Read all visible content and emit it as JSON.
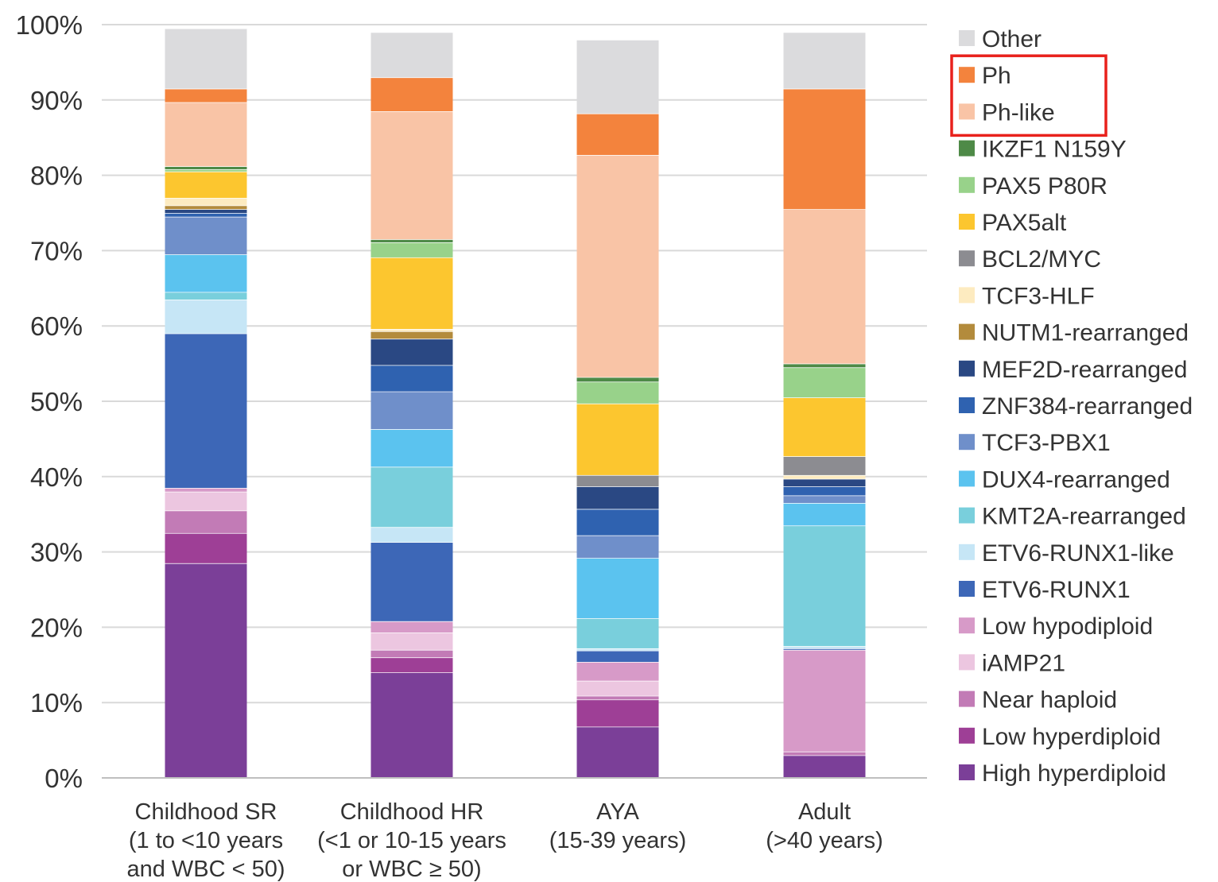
{
  "chart_data": {
    "type": "bar",
    "stacked": true,
    "ylim": [
      0,
      100
    ],
    "yticks": [
      "0%",
      "10%",
      "20%",
      "30%",
      "40%",
      "50%",
      "60%",
      "70%",
      "80%",
      "90%",
      "100%"
    ],
    "grid": true,
    "legend_position": "right",
    "categories": [
      [
        "Childhood SR",
        "(1 to <10 years",
        "and WBC < 50)"
      ],
      [
        "Childhood HR",
        "(<1 or 10-15 years",
        "or WBC ≥ 50)"
      ],
      [
        "AYA",
        "(15-39 years)"
      ],
      [
        "Adult",
        "(>40 years)"
      ]
    ],
    "series": [
      {
        "name": "High hyperdiploid",
        "color": "#7b3f98",
        "values": [
          28.5,
          14,
          6.8,
          3
        ]
      },
      {
        "name": "Low hyperdiploid",
        "color": "#9e3f96",
        "values": [
          4,
          2,
          3.6,
          0
        ]
      },
      {
        "name": "Near haploid",
        "color": "#c27bb6",
        "values": [
          3,
          1,
          0.5,
          0.5
        ]
      },
      {
        "name": "iAMP21",
        "color": "#ecc6e0",
        "values": [
          2.5,
          2.3,
          2,
          0
        ]
      },
      {
        "name": "Low hypodiploid",
        "color": "#d79ac8",
        "values": [
          0.5,
          1.5,
          2.5,
          13.5
        ]
      },
      {
        "name": "ETV6-RUNX1",
        "color": "#3d67b7",
        "values": [
          20.5,
          10.5,
          1.5,
          0.2
        ]
      },
      {
        "name": "ETV6-RUNX1-like",
        "color": "#c6e6f6",
        "values": [
          4.5,
          2,
          0.3,
          0.3
        ]
      },
      {
        "name": "KMT2A-rearranged",
        "color": "#79cfdc",
        "values": [
          1,
          8,
          4,
          16
        ]
      },
      {
        "name": "DUX4-rearranged",
        "color": "#5bc3ef",
        "values": [
          5,
          5,
          8,
          3
        ]
      },
      {
        "name": "TCF3-PBX1",
        "color": "#6f8fca",
        "values": [
          5,
          5,
          3,
          1
        ]
      },
      {
        "name": "ZNF384-rearranged",
        "color": "#2f62b0",
        "values": [
          0.5,
          3.5,
          3.5,
          1.2
        ]
      },
      {
        "name": "MEF2D-rearranged",
        "color": "#2a4883",
        "values": [
          0.5,
          3.5,
          3,
          1
        ]
      },
      {
        "name": "NUTM1-rearranged",
        "color": "#b38b3c",
        "values": [
          0.5,
          1,
          0,
          0
        ]
      },
      {
        "name": "TCF3-HLF",
        "color": "#fdebc0",
        "values": [
          1,
          0.3,
          0,
          0.5
        ]
      },
      {
        "name": "BCL2/MYC",
        "color": "#8c8c91",
        "values": [
          0,
          0,
          1.5,
          2.5
        ]
      },
      {
        "name": "PAX5alt",
        "color": "#fcc62f",
        "values": [
          3.5,
          9.5,
          9.5,
          7.8
        ]
      },
      {
        "name": "PAX5 P80R",
        "color": "#98d28a",
        "values": [
          0.3,
          2,
          2.9,
          4
        ]
      },
      {
        "name": "IKZF1 N159Y",
        "color": "#4e8a47",
        "values": [
          0.4,
          0.4,
          0.6,
          0.5
        ]
      },
      {
        "name": "Ph-like",
        "color": "#f9c4a6",
        "values": [
          8.5,
          17,
          29.5,
          20.5
        ]
      },
      {
        "name": "Ph",
        "color": "#f3833d",
        "values": [
          1.8,
          4.5,
          5.5,
          16
        ]
      },
      {
        "name": "Other",
        "color": "#dbdbdd",
        "values": [
          8,
          6,
          9.8,
          7.5
        ]
      }
    ]
  }
}
